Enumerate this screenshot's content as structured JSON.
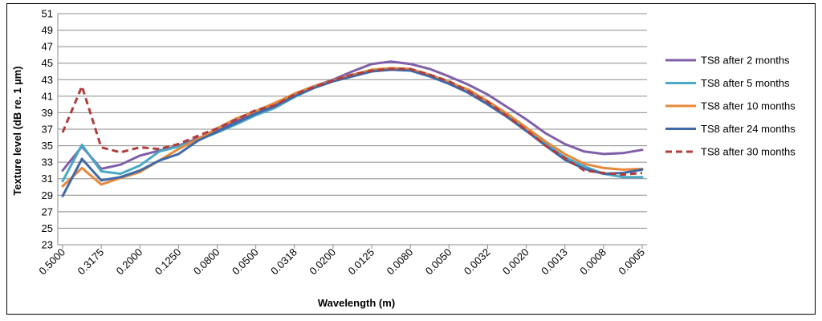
{
  "chart_data": {
    "type": "line",
    "xlabel": "Wavelength (m)",
    "ylabel": "Texture level (dB re. 1 µm)",
    "ylim": [
      23,
      51
    ],
    "ytick_step": 2,
    "grid": "horizontal",
    "legend_position": "right",
    "x": [
      "0.5000",
      "0.4000",
      "0.3175",
      "0.2500",
      "0.2000",
      "0.1600",
      "0.1250",
      "0.1000",
      "0.0800",
      "0.0630",
      "0.0500",
      "0.0400",
      "0.0318",
      "0.0250",
      "0.0200",
      "0.0160",
      "0.0125",
      "0.0100",
      "0.0080",
      "0.0063",
      "0.0050",
      "0.0040",
      "0.0032",
      "0.0025",
      "0.0020",
      "0.0016",
      "0.0013",
      "0.0010",
      "0.0008",
      "0.0006",
      "0.0005"
    ],
    "xtick_labels": [
      "0.5000",
      "0.3175",
      "0.2000",
      "0.1250",
      "0.0800",
      "0.0500",
      "0.0318",
      "0.0200",
      "0.0125",
      "0.0080",
      "0.0050",
      "0.0032",
      "0.0020",
      "0.0013",
      "0.0008",
      "0.0005"
    ],
    "series": [
      {
        "name": "TS8 after 2 months",
        "color": "#7f5fa8",
        "dash": false,
        "values": [
          32.0,
          34.9,
          32.2,
          32.7,
          33.8,
          34.4,
          35.0,
          35.9,
          36.8,
          38.0,
          38.9,
          39.9,
          41.3,
          42.2,
          43.0,
          44.0,
          44.9,
          45.2,
          44.9,
          44.3,
          43.4,
          42.4,
          41.2,
          39.7,
          38.2,
          36.5,
          35.2,
          34.3,
          34.0,
          34.1,
          34.5
        ]
      },
      {
        "name": "TS8 after 5 months",
        "color": "#4aa8c5",
        "dash": false,
        "values": [
          30.7,
          35.1,
          31.9,
          31.6,
          32.6,
          34.3,
          34.9,
          35.7,
          36.6,
          37.6,
          38.7,
          39.6,
          40.9,
          42.0,
          42.8,
          43.4,
          44.1,
          44.3,
          44.2,
          43.5,
          42.5,
          41.5,
          40.1,
          38.6,
          36.8,
          35.2,
          33.6,
          32.5,
          31.6,
          31.2,
          31.2
        ]
      },
      {
        "name": "TS8 after 10 months",
        "color": "#e7883a",
        "dash": false,
        "values": [
          30.1,
          32.3,
          30.3,
          31.1,
          31.8,
          33.2,
          34.6,
          35.8,
          37.1,
          38.3,
          39.2,
          40.2,
          41.3,
          42.2,
          42.9,
          43.6,
          44.2,
          44.4,
          44.3,
          43.6,
          42.7,
          41.8,
          40.4,
          38.9,
          37.2,
          35.5,
          34.0,
          32.8,
          32.3,
          32.1,
          32.2
        ]
      },
      {
        "name": "TS8 after 24 months",
        "color": "#3e6aa8",
        "dash": false,
        "values": [
          28.9,
          33.4,
          30.8,
          31.2,
          32.0,
          33.2,
          34.0,
          35.6,
          36.7,
          37.8,
          38.9,
          39.8,
          41.0,
          42.0,
          42.8,
          43.4,
          44.0,
          44.2,
          44.1,
          43.4,
          42.5,
          41.4,
          40.0,
          38.5,
          36.8,
          35.0,
          33.3,
          32.2,
          31.6,
          31.7,
          32.1
        ]
      },
      {
        "name": "TS8 after 30 months",
        "color": "#b03c3c",
        "dash": true,
        "values": [
          36.6,
          42.2,
          34.8,
          34.2,
          34.8,
          34.6,
          35.2,
          36.2,
          37.1,
          38.2,
          39.3,
          39.9,
          41.2,
          42.1,
          42.9,
          43.6,
          44.1,
          44.3,
          44.3,
          43.6,
          42.8,
          41.6,
          40.3,
          38.6,
          36.9,
          35.0,
          33.5,
          32.0,
          31.7,
          31.5,
          31.7
        ]
      }
    ]
  }
}
